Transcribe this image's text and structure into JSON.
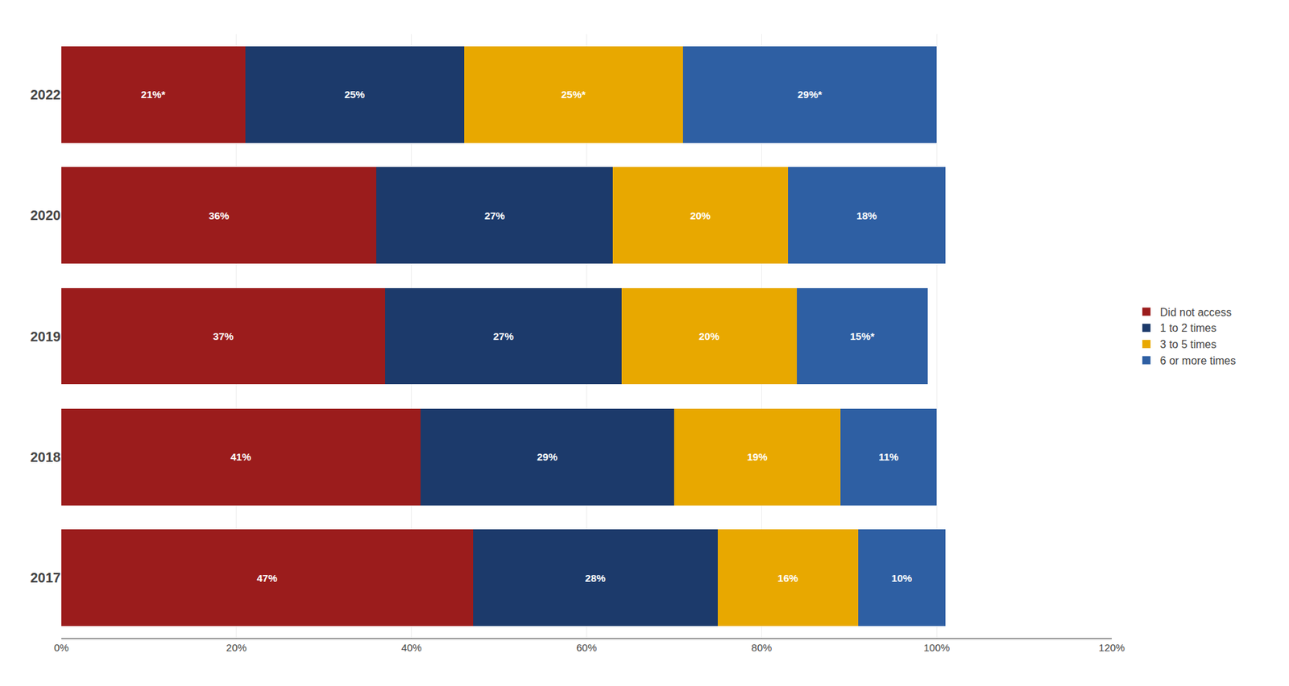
{
  "chart_data": {
    "type": "bar",
    "orientation": "horizontal",
    "stacked": true,
    "data_labels": true,
    "categories": [
      "2022",
      "2020",
      "2019",
      "2018",
      "2017"
    ],
    "series": [
      {
        "name": "Did not access",
        "color": "#9B1C1C",
        "values": [
          21,
          36,
          37,
          41,
          47
        ],
        "value_labels": [
          "21%*",
          "36%",
          "37%",
          "41%",
          "47%"
        ]
      },
      {
        "name": "1 to 2 times",
        "color": "#1C3A6B",
        "values": [
          25,
          27,
          27,
          29,
          28
        ],
        "value_labels": [
          "25%",
          "27%",
          "27%",
          "29%",
          "28%"
        ]
      },
      {
        "name": "3 to 5 times",
        "color": "#E8A800",
        "values": [
          25,
          20,
          20,
          19,
          16
        ],
        "value_labels": [
          "25%*",
          "20%",
          "20%",
          "19%",
          "16%"
        ]
      },
      {
        "name": "6 or more times",
        "color": "#2E5FA3",
        "values": [
          29,
          18,
          15,
          11,
          10
        ],
        "value_labels": [
          "29%*",
          "18%",
          "15%*",
          "11%",
          "10%"
        ]
      }
    ],
    "xlim": [
      0,
      120
    ],
    "xticks": [
      {
        "value": 0,
        "label": "0%"
      },
      {
        "value": 20,
        "label": "20%"
      },
      {
        "value": 40,
        "label": "40%"
      },
      {
        "value": 60,
        "label": "60%"
      },
      {
        "value": 80,
        "label": "80%"
      },
      {
        "value": 100,
        "label": "100%"
      },
      {
        "value": 120,
        "label": "120%"
      }
    ],
    "grid": true,
    "legend": "right"
  }
}
